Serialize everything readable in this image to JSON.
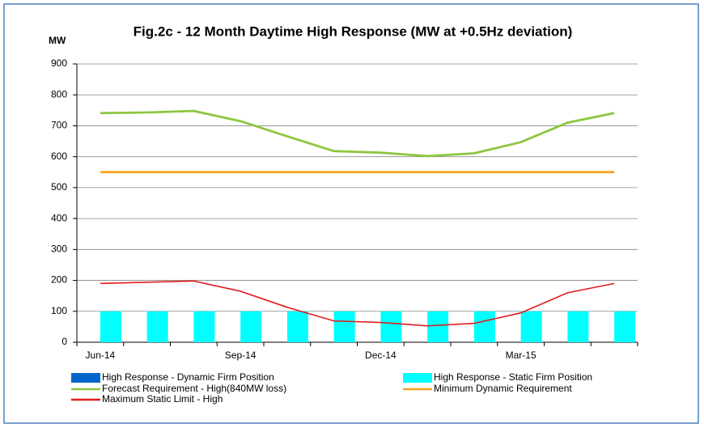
{
  "chart_data": {
    "type": "bar",
    "title": "Fig.2c - 12 Month Daytime High Response (MW at +0.5Hz deviation)",
    "y_label": "MW",
    "categories": [
      "Jun-14",
      null,
      null,
      "Sep-14",
      null,
      null,
      "Dec-14",
      null,
      null,
      "Mar-15",
      null,
      null
    ],
    "ylim": [
      0,
      900
    ],
    "yticks": [
      0,
      100,
      200,
      300,
      400,
      500,
      600,
      700,
      800,
      900
    ],
    "grid": true,
    "series": [
      {
        "name": "High Response - Dynamic Firm Position",
        "type": "bar",
        "color": "#0066cc",
        "values": [
          0,
          0,
          0,
          0,
          0,
          0,
          0,
          0,
          0,
          0,
          0,
          0
        ]
      },
      {
        "name": "High Response - Static Firm Position",
        "type": "bar",
        "color": "#00ffff",
        "values": [
          100,
          100,
          100,
          100,
          100,
          100,
          100,
          100,
          100,
          100,
          100,
          100
        ]
      },
      {
        "name": "Forecast Requirement - High(840MW loss)",
        "type": "line",
        "color": "#8cc63f",
        "values": [
          741,
          743,
          748,
          715,
          666,
          618,
          613,
          602,
          611,
          647,
          710,
          741
        ]
      },
      {
        "name": "Minimum Dynamic Requirement",
        "type": "line",
        "color": "#f7a21b",
        "values": [
          550,
          550,
          550,
          550,
          550,
          550,
          550,
          550,
          550,
          550,
          550,
          550
        ]
      },
      {
        "name": "Maximum Static Limit - High",
        "type": "line",
        "color": "#e31b1b",
        "values": [
          190,
          194,
          198,
          165,
          113,
          69,
          64,
          53,
          61,
          95,
          160,
          190
        ]
      }
    ]
  }
}
